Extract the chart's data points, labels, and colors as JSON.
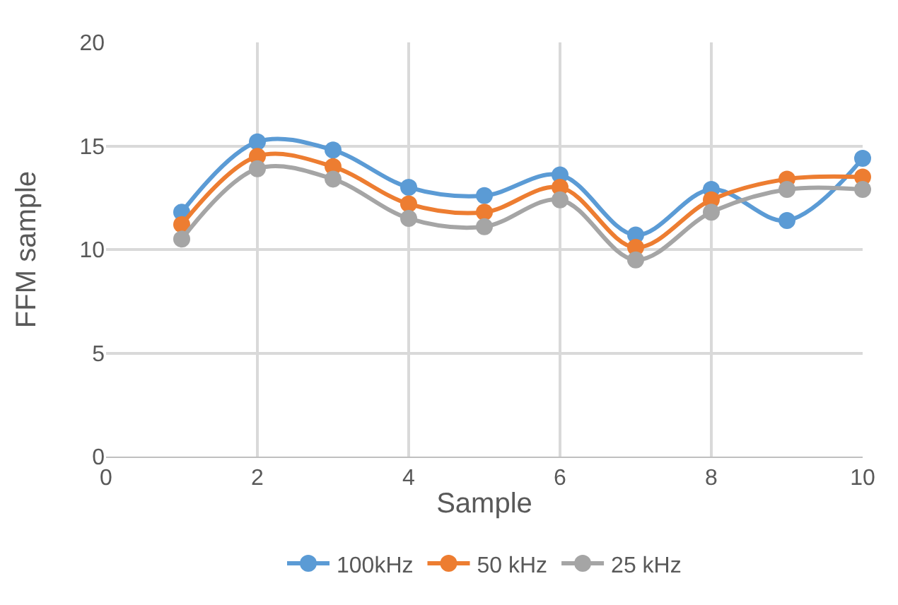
{
  "chart_data": {
    "type": "line",
    "xlabel": "Sample",
    "ylabel": "FFM sample",
    "x": [
      1,
      2,
      3,
      4,
      5,
      6,
      7,
      8,
      9,
      10
    ],
    "series": [
      {
        "name": "100kHz",
        "color": "#5b9bd5",
        "values": [
          11.8,
          15.2,
          14.8,
          13.0,
          12.6,
          13.6,
          10.7,
          12.9,
          11.4,
          14.4
        ]
      },
      {
        "name": "50 kHz",
        "color": "#ed7d31",
        "values": [
          11.2,
          14.5,
          14.0,
          12.2,
          11.8,
          13.0,
          10.1,
          12.4,
          13.4,
          13.5
        ]
      },
      {
        "name": "25 kHz",
        "color": "#a5a5a5",
        "values": [
          10.5,
          13.9,
          13.4,
          11.5,
          11.1,
          12.4,
          9.5,
          11.8,
          12.9,
          12.9
        ]
      }
    ],
    "xlim": [
      0,
      10
    ],
    "xticks": [
      0,
      2,
      4,
      6,
      8,
      10
    ],
    "ylim": [
      0,
      20
    ],
    "yticks": [
      0,
      5,
      10,
      15,
      20
    ],
    "grid": true,
    "legend": "bottom",
    "marker": "circle",
    "line_style": "solid"
  }
}
